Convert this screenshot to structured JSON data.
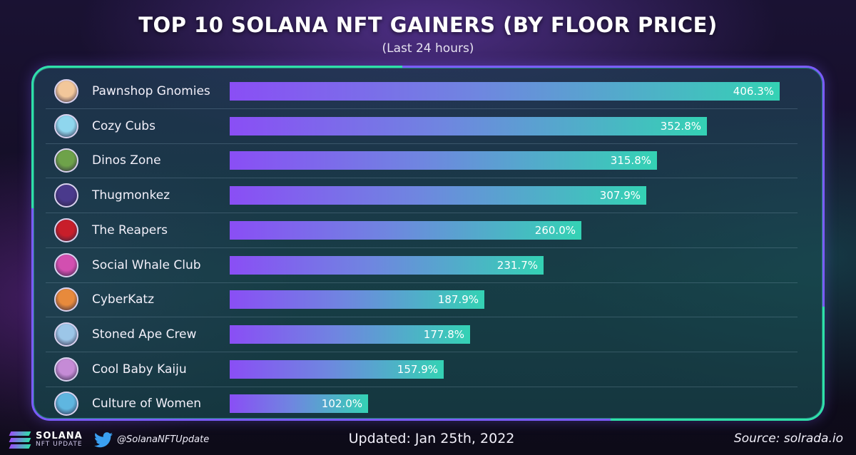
{
  "title": "TOP 10 SOLANA NFT GAINERS (BY FLOOR PRICE)",
  "subtitle": "(Last 24 hours)",
  "footer": {
    "logo_line1": "SOLANA",
    "logo_line2": "NFT UPDATE",
    "handle": "@SolanaNFTUpdate",
    "updated": "Updated: Jan 25th, 2022",
    "source": "Source: solrada.io"
  },
  "colors": {
    "bar_start": "#8a4ef5",
    "bar_end": "#34d2b4",
    "panel_border_purple": "#7b5cff",
    "panel_border_green": "#2fe0a8"
  },
  "chart_data": {
    "type": "bar",
    "orientation": "horizontal",
    "title": "TOP 10 SOLANA NFT GAINERS (BY FLOOR PRICE)",
    "subtitle": "(Last 24 hours)",
    "categories": [
      "Pawnshop Gnomies",
      "Cozy Cubs",
      "Dinos Zone",
      "Thugmonkez",
      "The Reapers",
      "Social Whale Club",
      "CyberKatz",
      "Stoned Ape Crew",
      "Cool Baby Kaiju",
      "Culture of Women"
    ],
    "values": [
      406.3,
      352.8,
      315.8,
      307.9,
      260.0,
      231.7,
      187.9,
      177.8,
      157.9,
      102.0
    ],
    "labels": [
      "406.3%",
      "352.8%",
      "315.8%",
      "307.9%",
      "260.0%",
      "231.7%",
      "187.9%",
      "177.8%",
      "157.9%",
      "102.0%"
    ],
    "unit": "%",
    "avatar_icons": [
      "gnome-avatar-icon",
      "bear-cub-avatar-icon",
      "dino-avatar-icon",
      "monkey-avatar-icon",
      "reaper-avatar-icon",
      "whale-avatar-icon",
      "cat-avatar-icon",
      "ape-avatar-icon",
      "kaiju-avatar-icon",
      "woman-avatar-icon"
    ],
    "avatar_colors": [
      "#f2c79a",
      "#8fd6ee",
      "#6ea24a",
      "#4a3a8c",
      "#c81e2a",
      "#d24fb0",
      "#e78a3c",
      "#9cc6e8",
      "#c58bd6",
      "#5fb6e0"
    ],
    "xlim": [
      0,
      406.3
    ],
    "grid": false,
    "legend": "none"
  }
}
